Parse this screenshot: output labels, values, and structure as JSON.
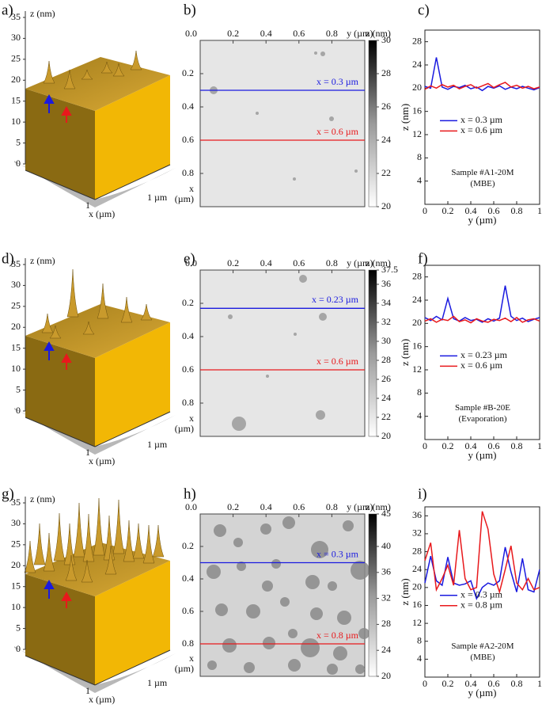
{
  "panel_labels": [
    "a)",
    "b)",
    "c)",
    "d)",
    "e)",
    "f)",
    "g)",
    "h)",
    "i)"
  ],
  "surfaces": [
    {
      "z_label": "z (nm)",
      "zlim": [
        0,
        35
      ],
      "zticks": [
        0,
        5,
        10,
        15,
        20,
        25,
        30,
        35
      ],
      "y_label": "1 µm",
      "x_tick": "1",
      "x_label": "x (µm)"
    },
    {
      "z_label": "z (nm)",
      "zlim": [
        0,
        35
      ],
      "zticks": [
        0,
        5,
        10,
        15,
        20,
        25,
        30,
        35
      ],
      "y_label": "1 µm",
      "x_tick": "1",
      "x_label": "x (µm)"
    },
    {
      "z_label": "z (nm)",
      "zlim": [
        0,
        35
      ],
      "zticks": [
        0,
        5,
        10,
        15,
        20,
        25,
        30,
        35
      ],
      "y_label": "1 µm",
      "x_tick": "1",
      "x_label": "x (µm)"
    }
  ],
  "maps": [
    {
      "lim": [
        0,
        1
      ],
      "corner_tick": {
        "value": 0,
        "label": "0.0"
      },
      "top_ticks": [
        0.2,
        0.4,
        0.6,
        0.8
      ],
      "top_label": "y (µm)",
      "left_ticks": [
        0.2,
        0.4,
        0.6,
        0.8
      ],
      "left_label": [
        "x",
        "(µm)"
      ],
      "colorbar_label": "z (nm)",
      "colorbar_lim": [
        20,
        30
      ],
      "colorbar_ticks": [
        20,
        22,
        24,
        26,
        28,
        30
      ],
      "lines": [
        {
          "position": 0.3,
          "label": "x = 0.3 µm",
          "color": "#1a1adf"
        },
        {
          "position": 0.6,
          "label": "x = 0.6 µm",
          "color": "#e8191c"
        }
      ]
    },
    {
      "lim": [
        0,
        1
      ],
      "corner_tick": {
        "value": 0,
        "label": "0.0"
      },
      "top_ticks": [
        0.2,
        0.4,
        0.6,
        0.8
      ],
      "top_label": "y (µm)",
      "left_ticks": [
        0.2,
        0.4,
        0.6,
        0.8
      ],
      "left_label": [
        "x",
        "(µm)"
      ],
      "colorbar_label": "z (nm)",
      "colorbar_lim": [
        20,
        37.5
      ],
      "colorbar_ticks": [
        20,
        22,
        24,
        26,
        28,
        30,
        32,
        34,
        36,
        37.5
      ],
      "lines": [
        {
          "position": 0.23,
          "label": "x = 0.23 µm",
          "color": "#1a1adf"
        },
        {
          "position": 0.6,
          "label": "x = 0.6 µm",
          "color": "#e8191c"
        }
      ]
    },
    {
      "lim": [
        0,
        1
      ],
      "corner_tick": {
        "value": 0,
        "label": "0.0"
      },
      "top_ticks": [
        0.2,
        0.4,
        0.6,
        0.8
      ],
      "top_label": "y (µm)",
      "left_ticks": [
        0.2,
        0.4,
        0.6,
        0.8
      ],
      "left_label": [
        "x",
        "(µm)"
      ],
      "colorbar_label": "z (nm)",
      "colorbar_lim": [
        20,
        45
      ],
      "colorbar_ticks": [
        20,
        24,
        28,
        32,
        36,
        40,
        45
      ],
      "lines": [
        {
          "position": 0.3,
          "label": "x = 0.3 µm",
          "color": "#1a1adf"
        },
        {
          "position": 0.8,
          "label": "x = 0.8 µm",
          "color": "#e8191c"
        }
      ]
    }
  ],
  "chart_data": [
    {
      "type": "line",
      "x_label": "y (µm)",
      "y_label": "z (nm)",
      "xlim": [
        0,
        1
      ],
      "ylim": [
        0,
        30
      ],
      "xticks": [
        0,
        0.2,
        0.4,
        0.6,
        0.8,
        1
      ],
      "yticks": [
        4,
        8,
        12,
        16,
        20,
        24,
        28
      ],
      "annotation": [
        "Sample #A1-20M",
        "(MBE)"
      ],
      "x": [
        0,
        0.05,
        0.1,
        0.15,
        0.2,
        0.25,
        0.3,
        0.35,
        0.4,
        0.45,
        0.5,
        0.55,
        0.6,
        0.65,
        0.7,
        0.75,
        0.8,
        0.85,
        0.9,
        0.95,
        1
      ],
      "series": [
        {
          "name": "x = 0.3 µm",
          "color": "#1a1adf",
          "values": [
            20.3,
            20.0,
            25.3,
            20.2,
            19.8,
            20.3,
            20.1,
            20.5,
            19.9,
            20.2,
            19.6,
            20.3,
            20.0,
            20.4,
            19.8,
            20.2,
            19.9,
            20.3,
            20.0,
            19.7,
            20.1
          ]
        },
        {
          "name": "x = 0.6 µm",
          "color": "#e8191c",
          "values": [
            19.8,
            20.4,
            20.0,
            20.6,
            20.2,
            20.5,
            19.9,
            20.3,
            20.6,
            20.0,
            20.4,
            20.8,
            20.1,
            20.6,
            21.0,
            20.2,
            20.5,
            20.0,
            20.3,
            19.9,
            20.2
          ]
        }
      ]
    },
    {
      "type": "line",
      "x_label": "y (µm)",
      "y_label": "z (nm)",
      "xlim": [
        0,
        1
      ],
      "ylim": [
        0,
        30
      ],
      "xticks": [
        0,
        0.2,
        0.4,
        0.6,
        0.8,
        1
      ],
      "yticks": [
        4,
        8,
        12,
        16,
        20,
        24,
        28
      ],
      "annotation": [
        "Sample #B-20E",
        "(Evaporation)"
      ],
      "x": [
        0,
        0.05,
        0.1,
        0.15,
        0.2,
        0.25,
        0.3,
        0.35,
        0.4,
        0.45,
        0.5,
        0.55,
        0.6,
        0.65,
        0.7,
        0.75,
        0.8,
        0.85,
        0.9,
        0.95,
        1
      ],
      "series": [
        {
          "name": "x = 0.23 µm",
          "color": "#1a1adf",
          "values": [
            21.0,
            20.5,
            21.2,
            20.6,
            24.3,
            20.8,
            20.4,
            21.0,
            20.5,
            20.7,
            20.2,
            20.8,
            20.4,
            20.9,
            26.5,
            21.2,
            20.5,
            20.9,
            20.3,
            20.7,
            21.0
          ]
        },
        {
          "name": "x = 0.6 µm",
          "color": "#e8191c",
          "values": [
            20.4,
            20.8,
            20.2,
            20.7,
            20.5,
            21.2,
            20.3,
            20.6,
            20.1,
            20.8,
            20.4,
            20.2,
            20.7,
            20.5,
            20.9,
            20.3,
            21.0,
            20.2,
            20.6,
            20.8,
            20.4
          ]
        }
      ]
    },
    {
      "type": "line",
      "x_label": "y (µm)",
      "y_label": "z (nm)",
      "xlim": [
        0,
        1
      ],
      "ylim": [
        0,
        38
      ],
      "xticks": [
        0,
        0.2,
        0.4,
        0.6,
        0.8,
        1
      ],
      "yticks": [
        4,
        8,
        12,
        16,
        20,
        24,
        28,
        32,
        36
      ],
      "annotation": [
        "Sample #A2-20M",
        "(MBE)"
      ],
      "x": [
        0,
        0.05,
        0.1,
        0.15,
        0.2,
        0.25,
        0.3,
        0.35,
        0.4,
        0.45,
        0.5,
        0.55,
        0.6,
        0.65,
        0.7,
        0.75,
        0.8,
        0.85,
        0.9,
        0.95,
        1
      ],
      "series": [
        {
          "name": "x = 0.3 µm",
          "color": "#1a1adf",
          "values": [
            21.0,
            27.0,
            21.5,
            20.5,
            26.8,
            21.0,
            20.5,
            20.8,
            21.5,
            17.5,
            20.0,
            21.0,
            20.5,
            21.5,
            29.0,
            23.5,
            19.0,
            26.5,
            19.5,
            19.0,
            24.0
          ]
        },
        {
          "name": "x = 0.8 µm",
          "color": "#e8191c",
          "values": [
            26.0,
            30.0,
            19.5,
            22.0,
            25.0,
            20.5,
            32.8,
            22.0,
            19.5,
            20.0,
            37.0,
            33.0,
            23.0,
            19.0,
            24.0,
            29.3,
            21.0,
            19.5,
            22.0,
            19.5,
            20.0
          ]
        }
      ]
    }
  ]
}
